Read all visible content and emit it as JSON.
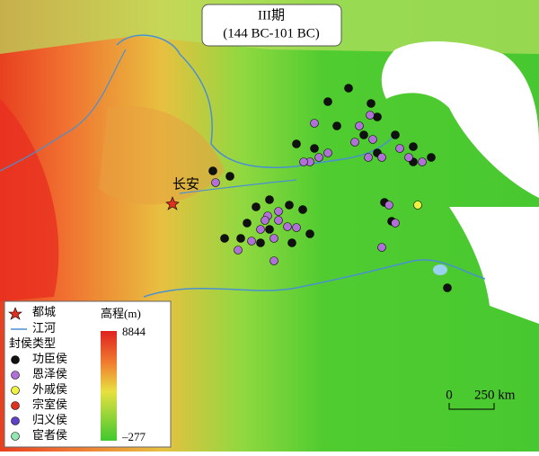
{
  "title": {
    "line1": "III期",
    "line2": "(144 BC-101 BC)"
  },
  "capital_label": "长安",
  "legend": {
    "capital": "都城",
    "river": "江河",
    "type_heading": "封侯类型",
    "types": [
      {
        "label": "功臣侯",
        "color": "#111111"
      },
      {
        "label": "恩泽侯",
        "color": "#b070d8"
      },
      {
        "label": "外戚侯",
        "color": "#f0f040"
      },
      {
        "label": "宗室侯",
        "color": "#e03020"
      },
      {
        "label": "归义侯",
        "color": "#6040c8"
      },
      {
        "label": "宦者侯",
        "color": "#90e8b0"
      }
    ]
  },
  "elevation": {
    "heading": "高程(m)",
    "max": 8844,
    "min": "–277"
  },
  "scale_bar": {
    "zero": 0,
    "distance": "250 km"
  }
}
